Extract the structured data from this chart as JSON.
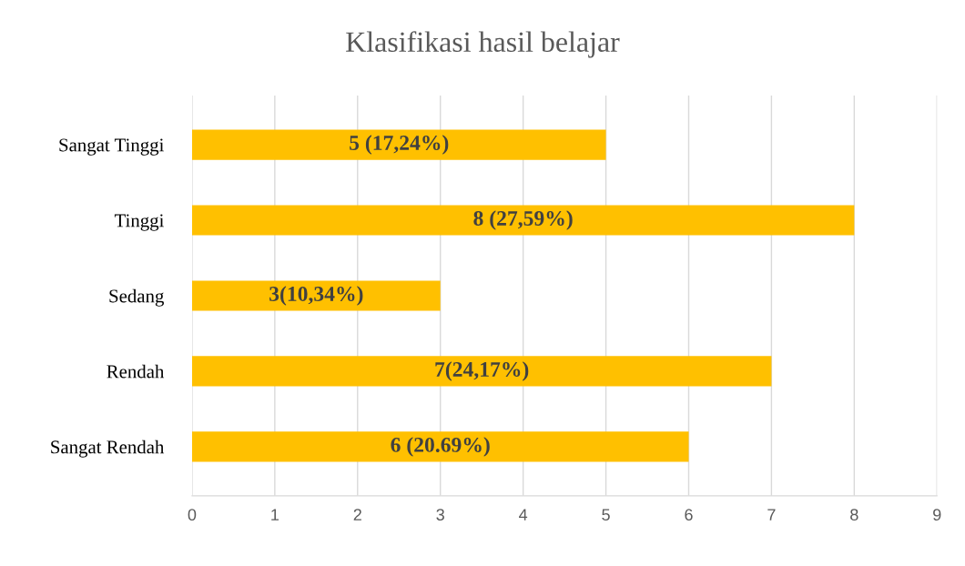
{
  "chart_data": {
    "type": "bar",
    "orientation": "horizontal",
    "title": "Klasifikasi hasil belajar",
    "categories": [
      "Sangat Tinggi",
      "Tinggi",
      "Sedang",
      "Rendah",
      "Sangat Rendah"
    ],
    "values": [
      5,
      8,
      3,
      7,
      6
    ],
    "color": "#ffc000",
    "value_labels": [
      "5 (17,24%)",
      "8 (27,59%)",
      "3(10,34%)",
      "7(24,17%)",
      "6 (20.69%)"
    ],
    "xlim": [
      0,
      9
    ],
    "xticks": [
      0,
      1,
      2,
      3,
      4,
      5,
      6,
      7,
      8,
      9
    ],
    "grid": "x"
  }
}
